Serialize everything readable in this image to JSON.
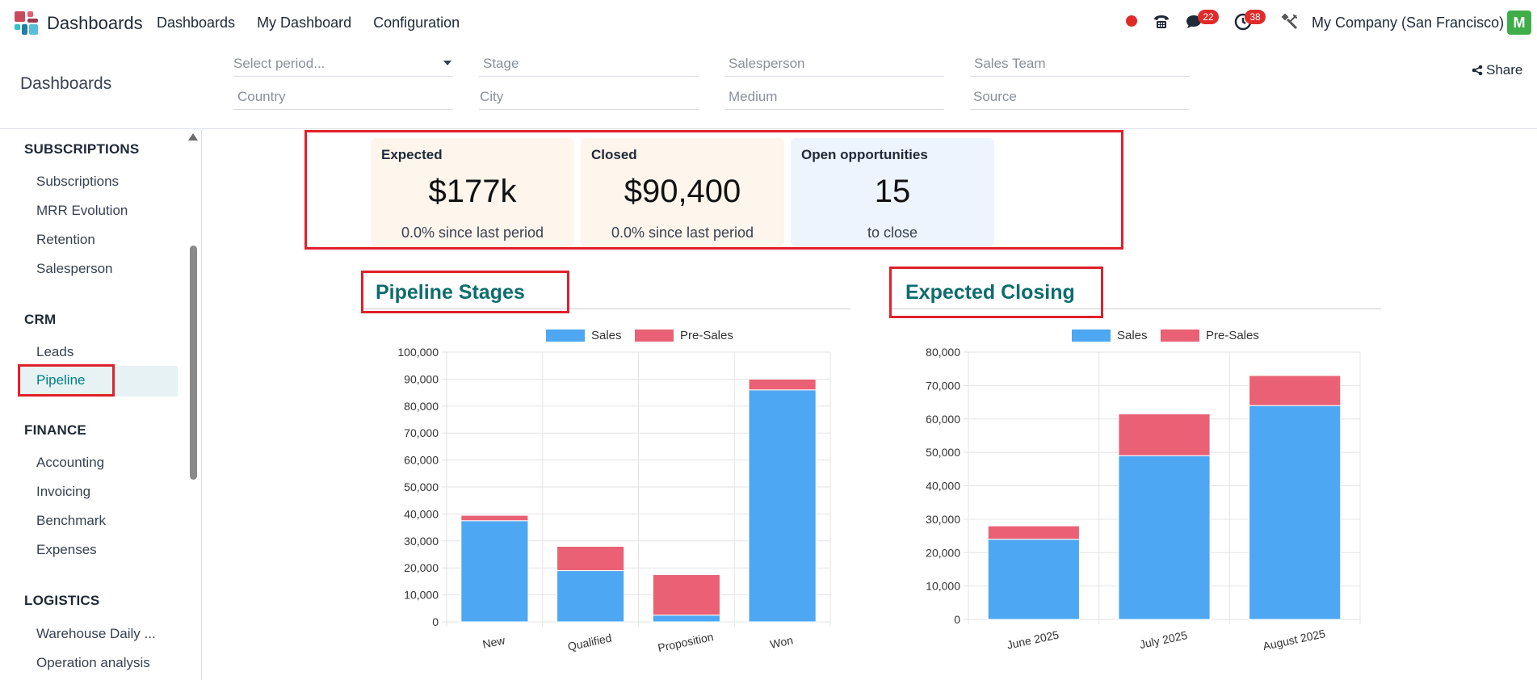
{
  "navbar": {
    "app_name": "Dashboards",
    "menu": [
      "Dashboards",
      "My Dashboard",
      "Configuration"
    ],
    "messages_badge": "22",
    "activities_badge": "38",
    "company": "My Company (San Francisco)",
    "avatar_letter": "M"
  },
  "control": {
    "breadcrumb": "Dashboards",
    "filters": {
      "period": "Select period...",
      "stage": "Stage",
      "salesperson": "Salesperson",
      "sales_team": "Sales Team",
      "country": "Country",
      "city": "City",
      "medium": "Medium",
      "source": "Source"
    },
    "share_label": "Share"
  },
  "sidebar": {
    "sections": [
      {
        "title": "SUBSCRIPTIONS",
        "items": [
          "Subscriptions",
          "MRR Evolution",
          "Retention",
          "Salesperson"
        ]
      },
      {
        "title": "CRM",
        "items": [
          "Leads",
          "Pipeline"
        ]
      },
      {
        "title": "FINANCE",
        "items": [
          "Accounting",
          "Invoicing",
          "Benchmark",
          "Expenses"
        ]
      },
      {
        "title": "LOGISTICS",
        "items": [
          "Warehouse Daily ...",
          "Operation analysis"
        ]
      }
    ],
    "active_item": "Pipeline"
  },
  "kpis": [
    {
      "title": "Expected",
      "value": "$177k",
      "sub": "0.0% since last period",
      "bg": "#fef5ec"
    },
    {
      "title": "Closed",
      "value": "$90,400",
      "sub": "0.0% since last period",
      "bg": "#fef5ec"
    },
    {
      "title": "Open opportunities",
      "value": "15",
      "sub": "to close",
      "bg": "#edf4fd"
    }
  ],
  "colors": {
    "sales": "#4ea7f2",
    "pre_sales": "#ea6175",
    "accent": "#017e84",
    "highlight": "#e0202a"
  },
  "chart_data": [
    {
      "type": "bar",
      "stacked": true,
      "title": "Pipeline Stages",
      "categories": [
        "New",
        "Qualified",
        "Proposition",
        "Won"
      ],
      "series": [
        {
          "name": "Sales",
          "values": [
            37500,
            19000,
            2500,
            86000
          ]
        },
        {
          "name": "Pre-Sales",
          "values": [
            2000,
            9000,
            15000,
            4000
          ]
        }
      ],
      "ylim": [
        0,
        100000
      ],
      "yticks": [
        "0",
        "10,000",
        "20,000",
        "30,000",
        "40,000",
        "50,000",
        "60,000",
        "70,000",
        "80,000",
        "90,000",
        "100,000"
      ],
      "legend": "top",
      "grid": true
    },
    {
      "type": "bar",
      "stacked": true,
      "title": "Expected Closing",
      "categories": [
        "June 2025",
        "July 2025",
        "August 2025"
      ],
      "series": [
        {
          "name": "Sales",
          "values": [
            24000,
            49000,
            64000
          ]
        },
        {
          "name": "Pre-Sales",
          "values": [
            4000,
            12500,
            9000
          ]
        }
      ],
      "ylim": [
        0,
        80000
      ],
      "yticks": [
        "0",
        "10,000",
        "20,000",
        "30,000",
        "40,000",
        "50,000",
        "60,000",
        "70,000",
        "80,000"
      ],
      "legend": "top",
      "grid": true
    }
  ]
}
